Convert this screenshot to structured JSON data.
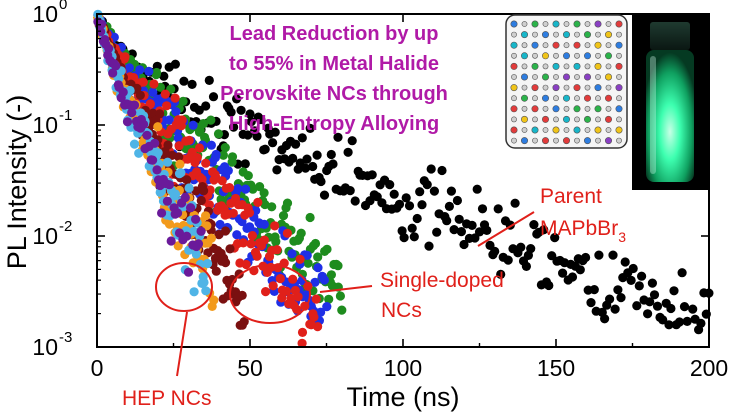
{
  "chart_data": {
    "type": "scatter",
    "title": "",
    "xlabel": "Time (ns)",
    "ylabel": "PL Intensity (-)",
    "xscale": "linear",
    "yscale": "log",
    "xlim": [
      0,
      200
    ],
    "ylim": [
      0.001,
      1
    ],
    "x_ticks": [
      0,
      50,
      100,
      150,
      200
    ],
    "y_ticks": [
      {
        "value": 0.001,
        "base": "10",
        "exp": "-3"
      },
      {
        "value": 0.01,
        "base": "10",
        "exp": "-2"
      },
      {
        "value": 0.1,
        "base": "10",
        "exp": "-1"
      },
      {
        "value": 1,
        "base": "10",
        "exp": "0"
      }
    ],
    "series": [
      {
        "name": "Parent MAPbBr3",
        "color": "#000000",
        "tau_fast": 5.5,
        "tau_slow": 38,
        "frac_fast": 0.68,
        "t_end": 200,
        "n_points": 260,
        "noise": 0.38,
        "seed": 7
      },
      {
        "name": "Single-doped (green)",
        "color": "#1e8c1e",
        "tau_fast": 5.0,
        "tau_slow": 15.5,
        "frac_fast": 0.52,
        "t_end": 80,
        "n_points": 190,
        "noise": 0.42,
        "seed": 11
      },
      {
        "name": "Single-doped (blue)",
        "color": "#1f2fe6",
        "tau_fast": 4.5,
        "tau_slow": 13.5,
        "frac_fast": 0.52,
        "t_end": 75,
        "n_points": 180,
        "noise": 0.42,
        "seed": 13
      },
      {
        "name": "Single-doped (red)",
        "color": "#e0201a",
        "tau_fast": 4.2,
        "tau_slow": 13.0,
        "frac_fast": 0.55,
        "t_end": 72,
        "n_points": 160,
        "noise": 0.42,
        "seed": 17
      },
      {
        "name": "HEP (dark red)",
        "color": "#7a1010",
        "tau_fast": 3.5,
        "tau_slow": 9.5,
        "frac_fast": 0.5,
        "t_end": 48,
        "n_points": 150,
        "noise": 0.42,
        "seed": 19
      },
      {
        "name": "HEP (orange)",
        "color": "#f29a1c",
        "tau_fast": 3.2,
        "tau_slow": 8.4,
        "frac_fast": 0.55,
        "t_end": 38,
        "n_points": 110,
        "noise": 0.42,
        "seed": 23
      },
      {
        "name": "HEP (light blue)",
        "color": "#4fb4e6",
        "tau_fast": 3.2,
        "tau_slow": 8.0,
        "frac_fast": 0.55,
        "t_end": 36,
        "n_points": 100,
        "noise": 0.42,
        "seed": 29
      },
      {
        "name": "HEP (purple)",
        "color": "#6a1a9a",
        "tau_fast": 3.0,
        "tau_slow": 8.0,
        "frac_fast": 0.55,
        "t_end": 34,
        "n_points": 60,
        "noise": 0.42,
        "seed": 31
      }
    ],
    "headline": [
      "Lead Reduction by up",
      "to 55% in Metal Halide",
      "Perovskite NCs through",
      "High-Entropy Alloying"
    ],
    "annotations": {
      "parent_line1": "Parent",
      "parent_line2": "MAPbBr",
      "parent_sub": "3",
      "single_line1": "Single-doped",
      "single_line2": "NCs",
      "hep": "HEP NCs"
    },
    "colors": {
      "headline": "#b01aa7",
      "annotation": "#e0201a",
      "vial_glow": "#3dffb0"
    }
  }
}
